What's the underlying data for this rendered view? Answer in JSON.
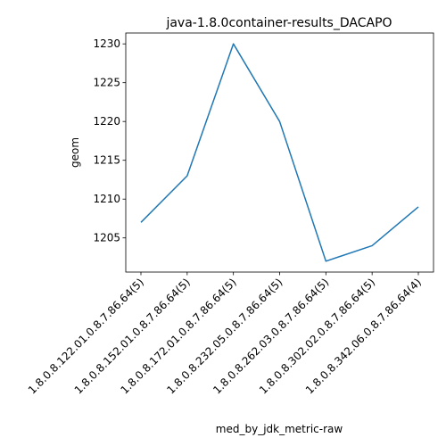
{
  "chart_data": {
    "type": "line",
    "title": "java-1.8.0container-results_DACAPO",
    "xlabel": "med_by_jdk_metric-raw",
    "ylabel": "geom",
    "categories": [
      "1.8.0.8.122.01.0.8.7.86.64(5)",
      "1.8.0.8.152.01.0.8.7.86.64(5)",
      "1.8.0.8.172.01.0.8.7.86.64(5)",
      "1.8.0.8.232.05.0.8.7.86.64(5)",
      "1.8.0.8.262.03.0.8.7.86.64(5)",
      "1.8.0.8.302.02.0.8.7.86.64(5)",
      "1.8.0.8.342.06.0.8.7.86.64(4)"
    ],
    "series": [
      {
        "values": [
          1207,
          1213,
          1230,
          1220,
          1202,
          1204,
          1209
        ]
      }
    ],
    "yticks": [
      1205,
      1210,
      1215,
      1220,
      1225,
      1230
    ],
    "ylim": [
      1200.6,
      1231.4
    ],
    "grid": false,
    "line_color": "#1f77b4"
  }
}
